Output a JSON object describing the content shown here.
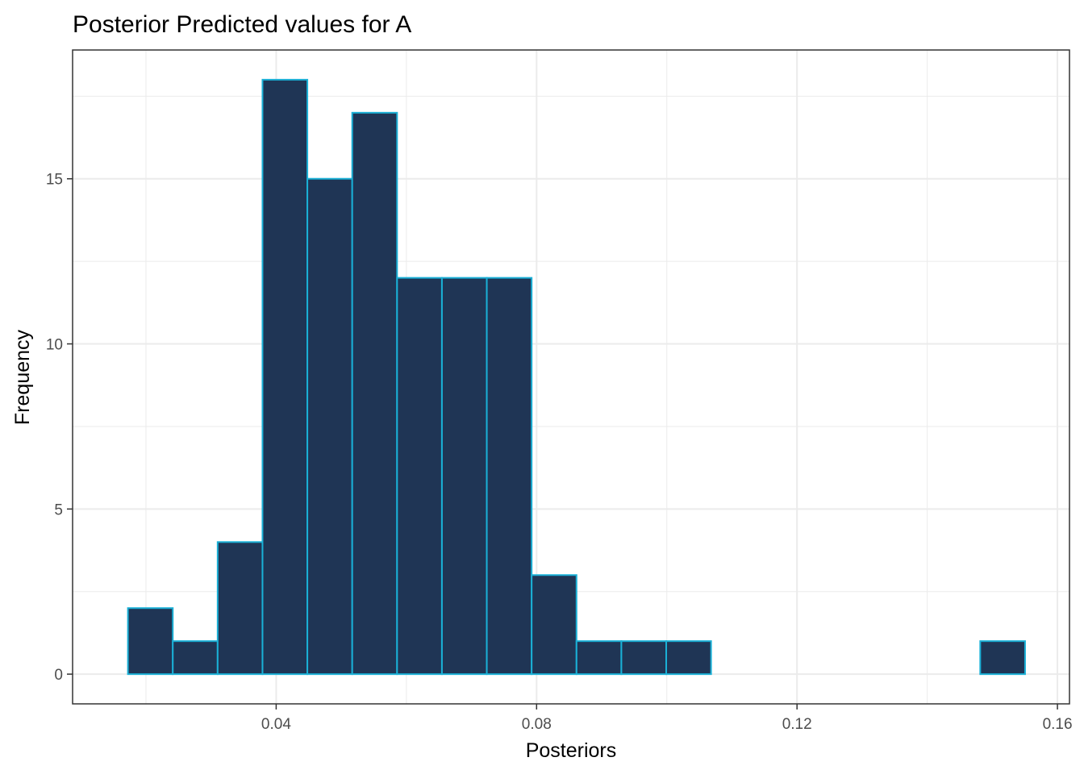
{
  "chart_data": {
    "type": "bar",
    "title": "Posterior Predicted values for A",
    "xlabel": "Posteriors",
    "ylabel": "Frequency",
    "xlim": [
      0.00873,
      0.16185
    ],
    "ylim": [
      -0.9,
      18.9
    ],
    "x_ticks": [
      0.04,
      0.08,
      0.12,
      0.16
    ],
    "x_tick_labels": [
      "0.04",
      "0.08",
      "0.12",
      "0.16"
    ],
    "y_ticks": [
      0,
      5,
      10,
      15
    ],
    "y_tick_labels": [
      "0",
      "5",
      "10",
      "15"
    ],
    "bin_edges": [
      0.01723,
      0.02412,
      0.03101,
      0.0379,
      0.04479,
      0.05168,
      0.05857,
      0.06546,
      0.07235,
      0.07924,
      0.08613,
      0.09302,
      0.09991,
      0.1068,
      0.11369,
      0.12058,
      0.12747,
      0.13436,
      0.14125,
      0.14814,
      0.15503
    ],
    "values": [
      2,
      1,
      4,
      18,
      15,
      17,
      12,
      12,
      12,
      3,
      1,
      1,
      1,
      0,
      0,
      0,
      0,
      0,
      0,
      1
    ],
    "grid": true,
    "fill_color": "#1f3555",
    "edge_color": "#1ab0d6",
    "grid_color": "#ebebeb",
    "panel_border_color": "#333333"
  }
}
